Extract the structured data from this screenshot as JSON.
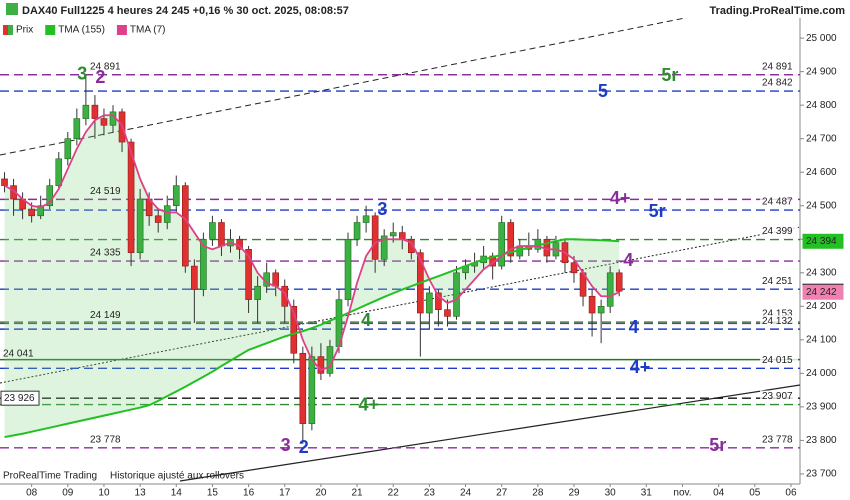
{
  "chart_data": {
    "type": "candlestick",
    "title": "DAX40 Full1225 4 heures 24 245 +0,16 % 30 oct. 2025, 08:08:57",
    "source": "Trading.ProRealTime.com",
    "footer": [
      "ProRealTime Trading",
      "Historique ajusté aux rollovers"
    ],
    "categories": [
      null,
      null,
      null,
      null,
      null,
      null,
      null,
      null,
      null,
      null,
      null,
      null,
      null,
      null,
      null,
      null,
      null,
      null,
      null,
      null,
      null,
      null,
      null,
      null,
      null,
      null,
      null,
      null,
      null,
      null,
      null,
      null,
      null,
      null,
      null,
      null,
      null,
      null,
      null,
      null,
      null,
      null,
      null,
      null,
      null,
      null,
      null,
      null,
      null,
      null,
      null,
      null,
      null,
      null,
      null,
      null,
      null,
      null,
      null,
      null,
      null,
      null,
      null,
      null,
      null,
      null,
      null,
      null,
      null
    ],
    "xlim": [
      -0.5,
      88
    ],
    "xticks": [
      {
        "value": 3,
        "label": "08"
      },
      {
        "value": 7,
        "label": "09"
      },
      {
        "value": 11,
        "label": "10"
      },
      {
        "value": 15,
        "label": "13"
      },
      {
        "value": 19,
        "label": "14"
      },
      {
        "value": 23,
        "label": "15"
      },
      {
        "value": 27,
        "label": "16"
      },
      {
        "value": 31,
        "label": "17"
      },
      {
        "value": 35,
        "label": "20"
      },
      {
        "value": 39,
        "label": "21"
      },
      {
        "value": 43,
        "label": "22"
      },
      {
        "value": 47,
        "label": "23"
      },
      {
        "value": 51,
        "label": "24"
      },
      {
        "value": 55,
        "label": "27"
      },
      {
        "value": 59,
        "label": "28"
      },
      {
        "value": 63,
        "label": "29"
      },
      {
        "value": 67,
        "label": "30"
      },
      {
        "value": 71,
        "label": "31"
      },
      {
        "value": 75,
        "label": "nov."
      },
      {
        "value": 79,
        "label": "04"
      },
      {
        "value": 83,
        "label": "05"
      },
      {
        "value": 87,
        "label": "06"
      }
    ],
    "ylim": [
      23670,
      25060
    ],
    "yticks": [
      {
        "value": 23700,
        "label": "23 700"
      },
      {
        "value": 23800,
        "label": "23 800"
      },
      {
        "value": 23900,
        "label": "23 900"
      },
      {
        "value": 24000,
        "label": "24 000"
      },
      {
        "value": 24100,
        "label": "24 100"
      },
      {
        "value": 24200,
        "label": "24 200"
      },
      {
        "value": 24300,
        "label": "24 300"
      },
      {
        "value": 24400,
        "label": "24 400"
      },
      {
        "value": 24500,
        "label": "24 500"
      },
      {
        "value": 24600,
        "label": "24 600"
      },
      {
        "value": 24700,
        "label": "24 700"
      },
      {
        "value": 24800,
        "label": "24 800"
      },
      {
        "value": 24900,
        "label": "24 900"
      },
      {
        "value": 25000,
        "label": "25 000"
      }
    ],
    "series": [
      {
        "name": "Prix",
        "color": "#3cb043",
        "down_color": "#e03030",
        "last_label": "24 245",
        "open": [
          24580,
          24560,
          24520,
          24490,
          24470,
          24500,
          24560,
          24640,
          24700,
          24760,
          24800,
          24760,
          24740,
          24780,
          24690,
          24360,
          24520,
          24470,
          24450,
          24500,
          24560,
          24320,
          24250,
          24400,
          24450,
          24380,
          24400,
          24370,
          24220,
          24260,
          24300,
          24260,
          24200,
          24060,
          23850,
          24050,
          24000,
          24080,
          24220,
          24400,
          24450,
          24470,
          24340,
          24410,
          24420,
          24400,
          24360,
          24180,
          24240,
          24190,
          24170,
          24300,
          24320,
          24330,
          24350,
          24320,
          24450,
          24350,
          24380,
          24370,
          24400,
          24350,
          24390,
          24330,
          24300,
          24230,
          24180,
          24200,
          24300
        ],
        "high": [
          24600,
          24580,
          24540,
          24510,
          24530,
          24580,
          24660,
          24720,
          24790,
          24891,
          24830,
          24790,
          24800,
          24790,
          24700,
          24550,
          24540,
          24490,
          24530,
          24590,
          24570,
          24340,
          24420,
          24470,
          24460,
          24430,
          24410,
          24380,
          24290,
          24330,
          24310,
          24280,
          24220,
          24080,
          24080,
          24090,
          24100,
          24250,
          24420,
          24470,
          24500,
          24480,
          24430,
          24450,
          24440,
          24410,
          24370,
          24260,
          24250,
          24220,
          24320,
          24340,
          24360,
          24380,
          24360,
          24470,
          24460,
          24400,
          24420,
          24430,
          24410,
          24410,
          24400,
          24350,
          24310,
          24250,
          24220,
          24320,
          24310
        ],
        "low": [
          24540,
          24470,
          24460,
          24450,
          24460,
          24490,
          24550,
          24620,
          24680,
          24740,
          24700,
          24710,
          24720,
          24660,
          24320,
          24340,
          24440,
          24420,
          24430,
          24480,
          24300,
          24150,
          24230,
          24380,
          24350,
          24360,
          24340,
          24180,
          24150,
          24240,
          24230,
          24150,
          24030,
          23790,
          23830,
          23980,
          23990,
          24060,
          24200,
          24380,
          24420,
          24300,
          24320,
          24390,
          24370,
          24340,
          24050,
          24130,
          24140,
          24140,
          24160,
          24280,
          24300,
          24310,
          24280,
          24310,
          24330,
          24340,
          24350,
          24360,
          24330,
          24340,
          24300,
          24270,
          24200,
          24110,
          24090,
          24180,
          24230
        ],
        "close": [
          24560,
          24520,
          24490,
          24470,
          24500,
          24560,
          24640,
          24700,
          24760,
          24800,
          24760,
          24740,
          24780,
          24690,
          24360,
          24520,
          24470,
          24450,
          24500,
          24560,
          24320,
          24250,
          24400,
          24450,
          24380,
          24400,
          24370,
          24220,
          24260,
          24300,
          24260,
          24200,
          24060,
          23850,
          24050,
          24000,
          24080,
          24220,
          24400,
          24450,
          24470,
          24340,
          24410,
          24420,
          24400,
          24360,
          24180,
          24240,
          24190,
          24170,
          24300,
          24320,
          24330,
          24350,
          24320,
          24450,
          24350,
          24380,
          24370,
          24400,
          24350,
          24390,
          24330,
          24300,
          24230,
          24180,
          24200,
          24300,
          24245
        ]
      },
      {
        "name": "TMA (155)",
        "color": "#22c022",
        "last_label": "24 394",
        "values": [
          23810,
          23815,
          23820,
          23826,
          23832,
          23838,
          23844,
          23850,
          23856,
          23862,
          23868,
          23874,
          23880,
          23886,
          23892,
          23898,
          23905,
          23918,
          23932,
          23946,
          23960,
          23975,
          23990,
          24005,
          24022,
          24038,
          24054,
          24070,
          24080,
          24090,
          24100,
          24110,
          24118,
          24126,
          24135,
          24145,
          24157,
          24168,
          24180,
          24192,
          24204,
          24216,
          24228,
          24239,
          24250,
          24260,
          24270,
          24280,
          24290,
          24300,
          24310,
          24320,
          24330,
          24340,
          24347,
          24354,
          24361,
          24368,
          24375,
          24382,
          24388,
          24394,
          24400,
          24400,
          24399,
          24398,
          24397,
          24396,
          24394
        ]
      },
      {
        "name": "TMA (7)",
        "color": "#e0408a",
        "last_label": "24 242",
        "values": [
          24560,
          24545,
          24520,
          24500,
          24495,
          24510,
          24550,
          24610,
          24670,
          24720,
          24755,
          24770,
          24770,
          24740,
          24660,
          24580,
          24520,
          24490,
          24480,
          24480,
          24460,
          24420,
          24380,
          24370,
          24380,
          24390,
          24380,
          24350,
          24300,
          24270,
          24260,
          24240,
          24180,
          24100,
          24040,
          24010,
          24020,
          24080,
          24170,
          24270,
          24350,
          24390,
          24400,
          24400,
          24400,
          24390,
          24340,
          24280,
          24230,
          24210,
          24220,
          24250,
          24280,
          24310,
          24330,
          24350,
          24370,
          24380,
          24380,
          24380,
          24370,
          24370,
          24360,
          24340,
          24300,
          24260,
          24230,
          24230,
          24242
        ]
      }
    ],
    "levels": [
      {
        "value": 24891,
        "label": "24 891",
        "color": "#2e8b2e",
        "style": "dashed",
        "side": "right"
      },
      {
        "value": 24891,
        "label": "24 891",
        "color": "#8b2c9c",
        "style": "dashed",
        "side": "left"
      },
      {
        "value": 24842,
        "label": "24 842",
        "color": "#1e3cc8",
        "style": "dashed",
        "side": "right"
      },
      {
        "value": 24519,
        "label": "24 519",
        "color": "#8b2c9c",
        "style": "dashed",
        "side": "left"
      },
      {
        "value": 24487,
        "label": "24 487",
        "color": "#1e3cc8",
        "style": "dashed",
        "side": "right"
      },
      {
        "value": 24399,
        "label": "24 399",
        "color": "#2e8b2e",
        "style": "dashed",
        "side": "right"
      },
      {
        "value": 24335,
        "label": "24 335",
        "color": "#8b2c9c",
        "style": "dashed",
        "side": "left"
      },
      {
        "value": 24251,
        "label": "24 251",
        "color": "#1e3cc8",
        "style": "dashed",
        "side": "right"
      },
      {
        "value": 24153,
        "label": "24 153",
        "color": "#2e8b2e",
        "style": "dashed",
        "side": "right"
      },
      {
        "value": 24149,
        "label": "24 149",
        "color": "#8b2c9c",
        "style": "dashed",
        "side": "left"
      },
      {
        "value": 24132,
        "label": "24 132",
        "color": "#1e3cc8",
        "style": "dashed",
        "side": "right"
      },
      {
        "value": 24041,
        "label": "24 041",
        "color": "#1e7a1e",
        "style": "solid",
        "side": "edge"
      },
      {
        "value": 24015,
        "label": "24 015",
        "color": "#1e3cc8",
        "style": "dashed",
        "side": "right"
      },
      {
        "value": 23926,
        "label": "23 926",
        "color": "#111111",
        "style": "dashed",
        "side": "edge"
      },
      {
        "value": 23907,
        "label": "23 907",
        "color": "#2e8b2e",
        "style": "dashed",
        "side": "right"
      },
      {
        "value": 23778,
        "label": "23 778",
        "color": "#8b2c9c",
        "style": "dashed",
        "side": "both"
      }
    ],
    "annotations": [
      {
        "text": "3",
        "x": 8.6,
        "y": 24890,
        "color": "#2e8b2e"
      },
      {
        "text": "2",
        "x": 10.6,
        "y": 24880,
        "color": "#8b2c9c"
      },
      {
        "text": "5r",
        "x": 73.6,
        "y": 24886,
        "color": "#2e8b2e"
      },
      {
        "text": "5",
        "x": 66.2,
        "y": 24839,
        "color": "#1e3cc8"
      },
      {
        "text": "4+",
        "x": 68.1,
        "y": 24520,
        "color": "#8b2c9c"
      },
      {
        "text": "5r",
        "x": 72.2,
        "y": 24481,
        "color": "#1e3cc8"
      },
      {
        "text": "3",
        "x": 41.8,
        "y": 24487,
        "color": "#1e3cc8"
      },
      {
        "text": "4",
        "x": 69,
        "y": 24335,
        "color": "#8b2c9c"
      },
      {
        "text": "4",
        "x": 40,
        "y": 24156,
        "color": "#2e8b2e"
      },
      {
        "text": "4",
        "x": 69.6,
        "y": 24135,
        "color": "#1e3cc8"
      },
      {
        "text": "4+",
        "x": 70.3,
        "y": 24016,
        "color": "#1e3cc8"
      },
      {
        "text": "4+",
        "x": 40.3,
        "y": 23903,
        "color": "#2e8b2e"
      },
      {
        "text": "3",
        "x": 31.1,
        "y": 23783,
        "color": "#8b2c9c"
      },
      {
        "text": "2",
        "x": 33.1,
        "y": 23777,
        "color": "#1e3cc8"
      },
      {
        "text": "5r",
        "x": 78.9,
        "y": 23783,
        "color": "#8b2c9c"
      }
    ]
  }
}
